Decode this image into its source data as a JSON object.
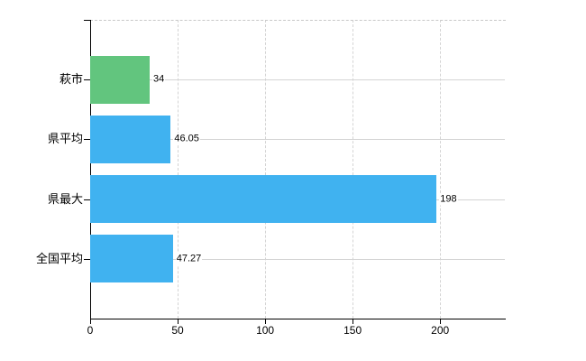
{
  "chart_data": {
    "type": "bar",
    "orientation": "horizontal",
    "title": "",
    "categories": [
      "萩市",
      "県平均",
      "県最大",
      "全国平均"
    ],
    "values": [
      34,
      46.05,
      198,
      47.27
    ],
    "value_labels": [
      "34",
      "46.05",
      "198",
      "47.27"
    ],
    "bar_colors": [
      "#62c57e",
      "#40b2f0",
      "#40b2f0",
      "#40b2f0"
    ],
    "x_ticks": [
      0,
      50,
      100,
      150,
      200
    ],
    "x_tick_labels": [
      "0",
      "50",
      "100",
      "150",
      "200"
    ],
    "xlim": [
      0,
      237
    ],
    "xlabel": "",
    "ylabel": "",
    "grid": true,
    "legend": "none"
  },
  "colors": {
    "bar_default": "#40b2f0",
    "bar_highlight": "#62c57e",
    "gridline": "#d4d4d4",
    "plot_border_dashed": "#c8c8c8",
    "axis": "#000000",
    "text": "#000000",
    "background": "#ffffff"
  }
}
